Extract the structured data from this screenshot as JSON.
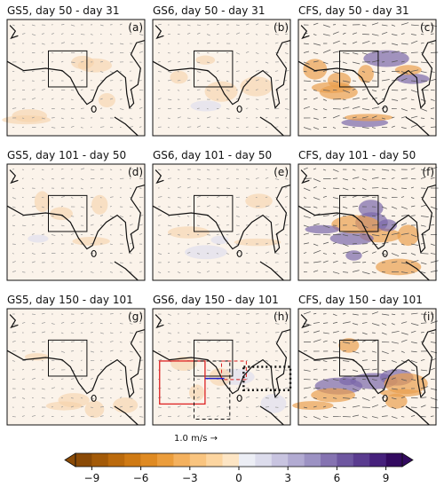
{
  "panels": [
    {
      "title": "GS5, day 50 - day 31",
      "label": "(a)"
    },
    {
      "title": "GS6, day 50 - day 31",
      "label": "(b)"
    },
    {
      "title": "CFS, day 50 - day 31",
      "label": "(c)"
    },
    {
      "title": "GS5, day 101 - day 50",
      "label": "(d)"
    },
    {
      "title": "GS6, day 101 - day 50",
      "label": "(e)"
    },
    {
      "title": "CFS, day 101 - day 50",
      "label": "(f)"
    },
    {
      "title": "GS5, day 150 - day 101",
      "label": "(g)"
    },
    {
      "title": "GS6, day 150 - day 101",
      "label": "(h)"
    },
    {
      "title": "CFS, day 150 - day 101",
      "label": "(i)"
    }
  ],
  "reference_vector": "1.0 m/s →",
  "colorbar": {
    "clim": [
      -10,
      10
    ],
    "ticks": [
      {
        "value": -9,
        "label": "−9"
      },
      {
        "value": -6,
        "label": "−6"
      },
      {
        "value": -3,
        "label": "−3"
      },
      0,
      3,
      6,
      9
    ],
    "colors": [
      "#8a4a06",
      "#a35a08",
      "#bb6a0c",
      "#cf7a14",
      "#df8a22",
      "#eb9d3c",
      "#f4b15e",
      "#f9c47f",
      "#fcd5a0",
      "#fde5c4",
      "#eceef5",
      "#dcdcec",
      "#c8c4e0",
      "#b2abd2",
      "#9c92c3",
      "#8573b1",
      "#6e57a0",
      "#5a3c8f",
      "#46217c",
      "#330a60"
    ]
  }
}
